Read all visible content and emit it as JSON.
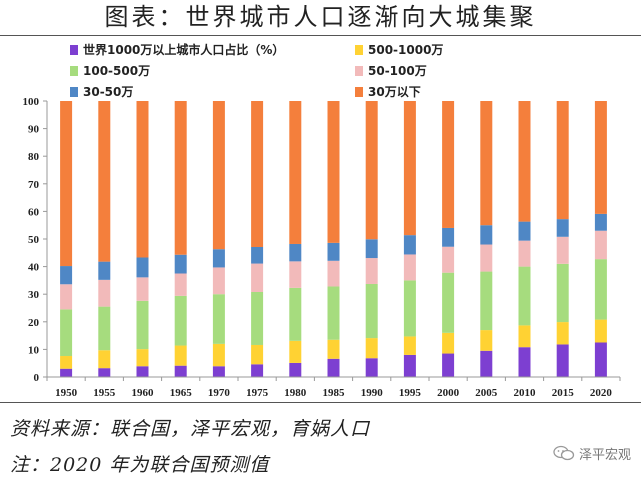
{
  "title": "图表：世界城市人口逐渐向大城集聚",
  "footer": {
    "source": "资料来源：联合国，泽平宏观，育娲人口",
    "note": "注：2020 年为联合国预测值"
  },
  "watermark": {
    "text": "泽平宏观",
    "icon": "wechat-icon"
  },
  "chart_data": {
    "type": "bar",
    "stacked": true,
    "title": "",
    "xlabel": "",
    "ylabel": "",
    "ylim": [
      0,
      100
    ],
    "yticks": [
      0,
      10,
      20,
      30,
      40,
      50,
      60,
      70,
      80,
      90,
      100
    ],
    "categories": [
      "1950",
      "1955",
      "1960",
      "1965",
      "1970",
      "1975",
      "1980",
      "1985",
      "1990",
      "1995",
      "2000",
      "2005",
      "2010",
      "2015",
      "2020"
    ],
    "legend_position": "top",
    "series": [
      {
        "name": "世界1000万以上城市人口占比（%）",
        "color": "#7d3fd1",
        "values": [
          3.0,
          3.2,
          3.9,
          4.1,
          3.9,
          4.6,
          5.1,
          6.6,
          6.8,
          8.0,
          8.5,
          9.5,
          10.8,
          11.8,
          12.5
        ]
      },
      {
        "name": "500-1000万",
        "color": "#ffd233",
        "values": [
          4.6,
          6.5,
          6.2,
          7.3,
          8.1,
          7.0,
          8.0,
          6.9,
          7.3,
          6.7,
          7.5,
          7.5,
          7.9,
          8.1,
          8.3
        ]
      },
      {
        "name": "100-500万",
        "color": "#a6dc7e",
        "values": [
          16.9,
          15.8,
          17.5,
          18.0,
          18.0,
          19.2,
          19.2,
          19.3,
          19.6,
          20.3,
          21.8,
          21.2,
          21.3,
          21.1,
          21.9
        ]
      },
      {
        "name": "50-100万",
        "color": "#f2baba",
        "values": [
          9.1,
          9.7,
          8.5,
          8.1,
          9.7,
          10.3,
          9.6,
          9.3,
          9.4,
          9.4,
          9.4,
          9.8,
          9.4,
          9.8,
          10.3
        ]
      },
      {
        "name": "30-50万",
        "color": "#4f87c5",
        "values": [
          6.6,
          6.6,
          7.2,
          6.8,
          6.6,
          6.0,
          6.3,
          6.5,
          6.8,
          7.0,
          6.8,
          7.0,
          6.9,
          6.4,
          6.1
        ]
      },
      {
        "name": "30万以下",
        "color": "#f47f3c",
        "values": [
          59.8,
          58.2,
          56.7,
          55.7,
          53.7,
          52.9,
          51.8,
          51.4,
          50.1,
          48.6,
          46.0,
          45.0,
          43.7,
          42.8,
          40.9
        ]
      }
    ]
  }
}
